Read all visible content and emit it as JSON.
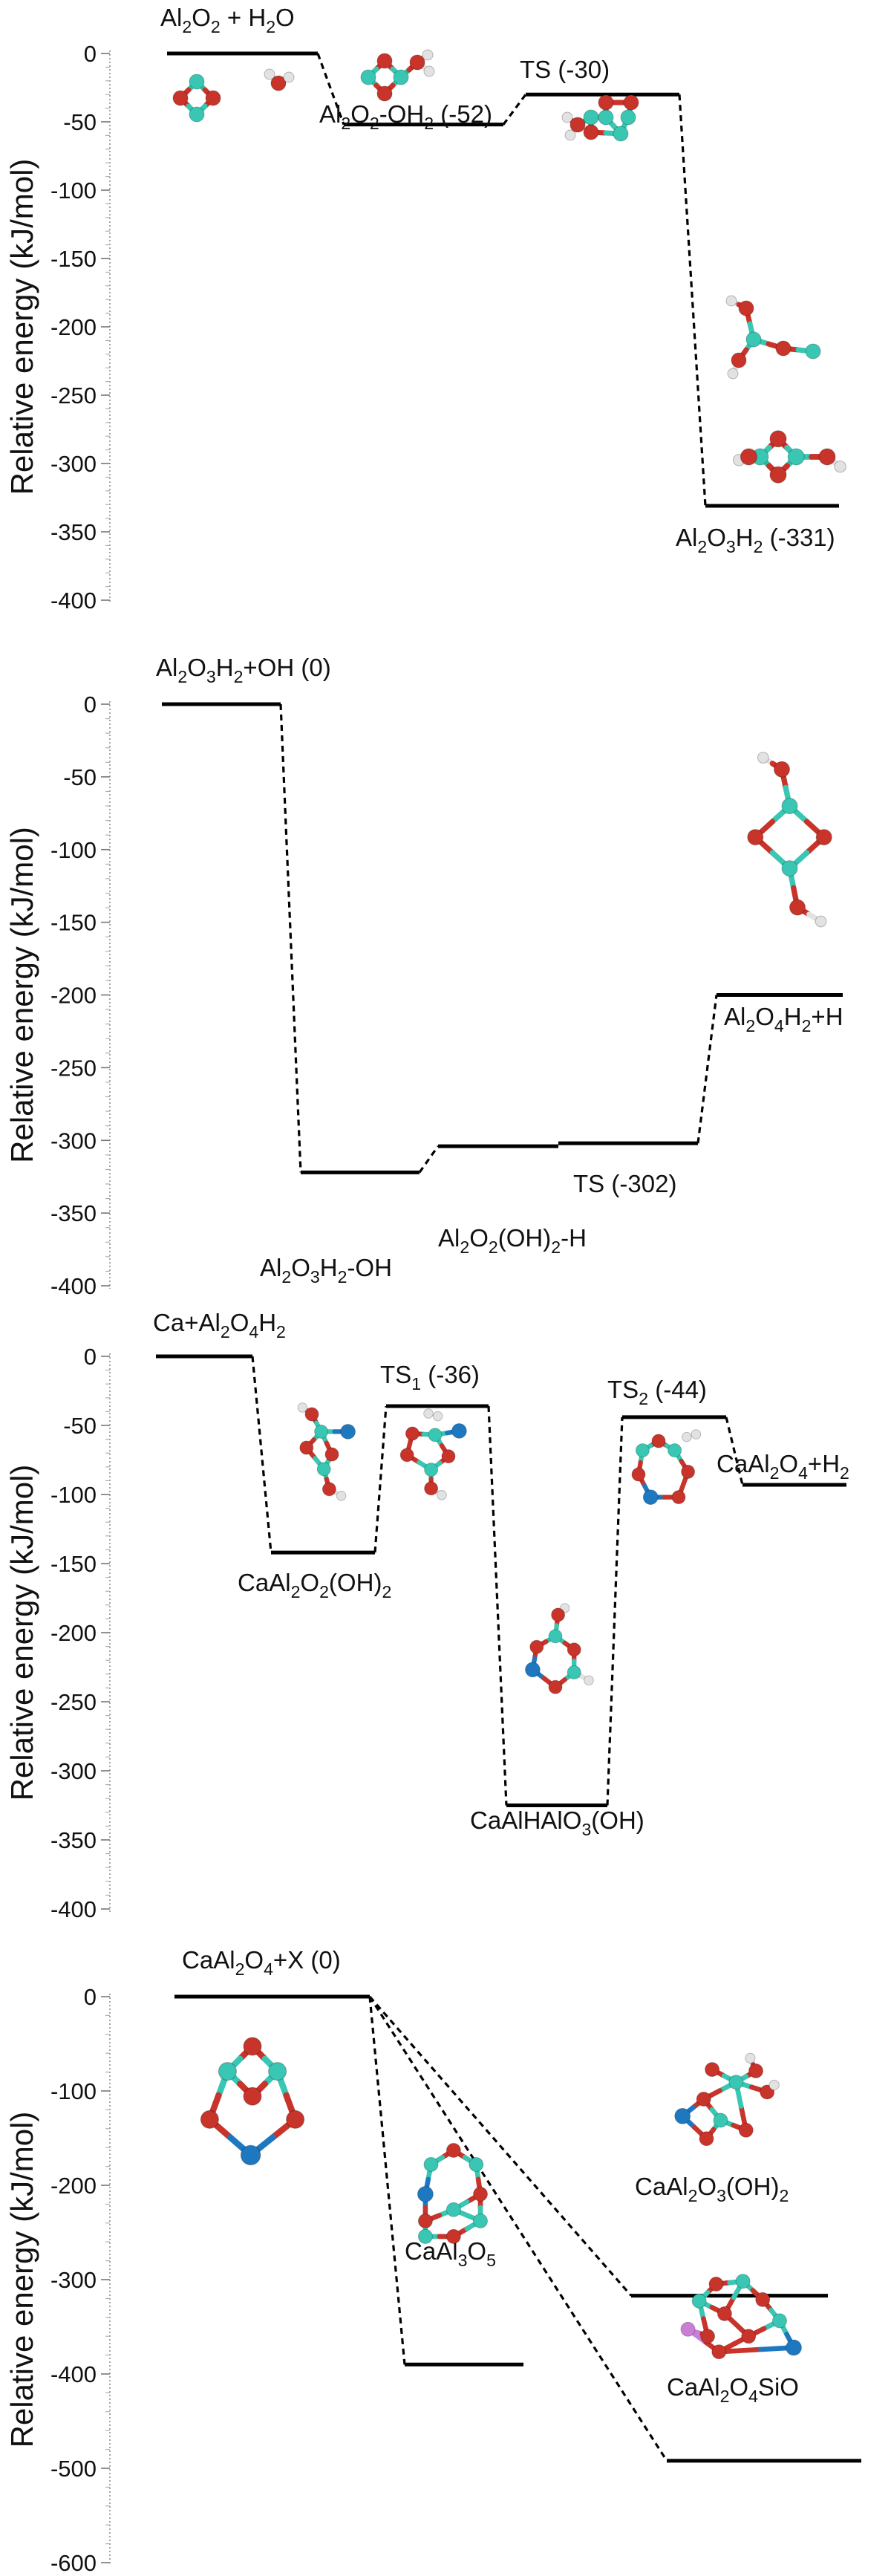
{
  "colors": {
    "aluminium": "#39c6b2",
    "oxygen": "#c8332a",
    "hydrogen": "#e2e2e2",
    "calcium": "#1e78c0",
    "silicon": "#c97fd6",
    "line": "#000000"
  },
  "chart_data": [
    {
      "type": "energy_diagram",
      "ylabel": "Relative energy (kJ/mol)",
      "ylim": [
        -400,
        0
      ],
      "yticks": [
        "0",
        "-50",
        "-100",
        "-150",
        "-200",
        "-250",
        "-300",
        "-350",
        "-400"
      ],
      "levels": [
        {
          "label": "Al2O2 + H2O",
          "value": 0
        },
        {
          "label": "Al2O2-OH2 (-52)",
          "value": -52
        },
        {
          "label": "TS (-30)",
          "value": -30
        },
        {
          "label": "Al2O3H2 (-331)",
          "value": -331
        }
      ],
      "molecules": [
        "Al2O2",
        "H2O",
        "Al2O2-OH2",
        "TS",
        "Al2O3H2",
        "Al2O3H2"
      ]
    },
    {
      "type": "energy_diagram",
      "ylabel": "Relative energy (kJ/mol)",
      "ylim": [
        -400,
        0
      ],
      "yticks": [
        "0",
        "-50",
        "-100",
        "-150",
        "-200",
        "-250",
        "-300",
        "-350",
        "-400"
      ],
      "levels": [
        {
          "label": "Al2O3H2+OH (0)",
          "value": 0
        },
        {
          "label": "Al2O3H2-OH",
          "value": -322
        },
        {
          "label": "Al2O2(OH)2-H",
          "value": -304
        },
        {
          "label": "TS (-302)",
          "value": -302
        },
        {
          "label": "Al2O4H2+H",
          "value": -200
        }
      ],
      "molecules": [
        "Al2O4H2"
      ]
    },
    {
      "type": "energy_diagram",
      "ylabel": "Relative energy (kJ/mol)",
      "ylim": [
        -400,
        0
      ],
      "yticks": [
        "0",
        "-50",
        "-100",
        "-150",
        "-200",
        "-250",
        "-300",
        "-350",
        "-400"
      ],
      "levels": [
        {
          "label": "Ca+Al2O4H2",
          "value": 0
        },
        {
          "label": "CaAl2O2(OH)2",
          "value": -142
        },
        {
          "label": "TS1 (-36)",
          "value": -36
        },
        {
          "label": "CaAlHAlO3(OH)",
          "value": -325
        },
        {
          "label": "TS2 (-44)",
          "value": -44
        },
        {
          "label": "CaAl2O4+H2",
          "value": -93
        }
      ],
      "molecules": [
        "CaAl2O2(OH)2",
        "TS1",
        "CaAlHAlO3(OH)",
        "TS2"
      ]
    },
    {
      "type": "energy_diagram",
      "ylabel": "Relative energy (kJ/mol)",
      "ylim": [
        -600,
        0
      ],
      "yticks": [
        "0",
        "-100",
        "-200",
        "-300",
        "-400",
        "-500",
        "-600"
      ],
      "levels": [
        {
          "label": "CaAl2O4+X (0)",
          "value": 0
        },
        {
          "label": "CaAl3O5",
          "value": -390
        },
        {
          "label": "CaAl2O3(OH)2",
          "value": -317
        },
        {
          "label": "CaAl2O4SiO",
          "value": -492
        }
      ],
      "molecules": [
        "CaAl2O4",
        "CaAl3O5",
        "CaAl2O3(OH)2",
        "CaAl2O4SiO"
      ]
    }
  ]
}
